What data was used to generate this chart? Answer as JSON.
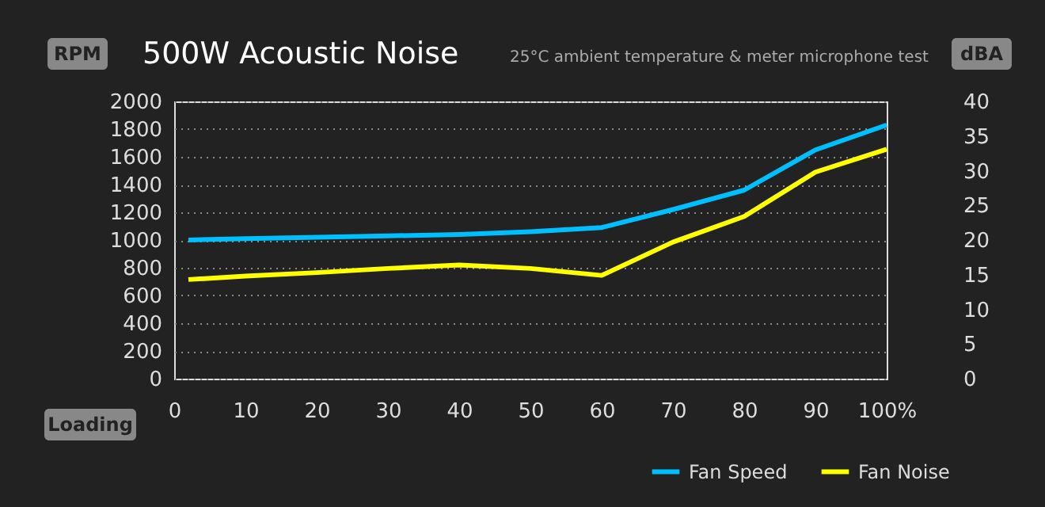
{
  "chart_data": {
    "type": "line",
    "title": "500W Acoustic Noise",
    "subtitle": "25°C ambient temperature & meter microphone test",
    "xlabel": "Loading",
    "ylabel": "RPM",
    "y2label": "dBA",
    "x": [
      2,
      10,
      20,
      30,
      40,
      50,
      60,
      70,
      80,
      90,
      100
    ],
    "series": [
      {
        "name": "Fan Speed",
        "color": "#00bfff",
        "values": [
          1000,
          1010,
          1020,
          1030,
          1040,
          1060,
          1090,
          1220,
          1360,
          1650,
          1830
        ]
      },
      {
        "name": "Fan Noise",
        "color": "#ffff00",
        "axis": "y2",
        "values": [
          14.3,
          14.8,
          15.3,
          15.9,
          16.4,
          15.9,
          14.9,
          19.7,
          23.4,
          29.8,
          33.1
        ]
      }
    ],
    "xlim": [
      0,
      100
    ],
    "xticks": [
      0,
      10,
      20,
      30,
      40,
      50,
      60,
      70,
      80,
      90,
      {
        "value": 100,
        "label": "100%"
      }
    ],
    "ylim": [
      0,
      2000
    ],
    "yticks": [
      0,
      200,
      400,
      600,
      800,
      1000,
      1200,
      1400,
      1600,
      1800,
      2000
    ],
    "y2lim": [
      0,
      40
    ],
    "y2ticks": [
      0,
      5,
      10,
      15,
      20,
      25,
      30,
      35,
      40
    ],
    "grid": "y",
    "legend": "bottom right",
    "marker": "none",
    "line_style": "solid"
  }
}
